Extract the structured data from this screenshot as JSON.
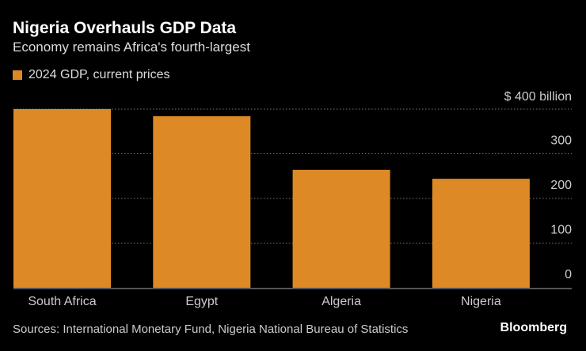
{
  "title": "Nigeria Overhauls GDP Data",
  "subtitle": "Economy remains Africa's fourth-largest",
  "source": "Sources: International Monetary Fund, Nigeria National Bureau of Statistics",
  "logo": "Bloomberg",
  "chart_data": {
    "type": "bar",
    "categories": [
      "South Africa",
      "Egypt",
      "Algeria",
      "Nigeria"
    ],
    "series": [
      {
        "name": "2024 GDP, current prices",
        "values": [
          400,
          384,
          264,
          244
        ],
        "color": "#dd8a26"
      }
    ],
    "yticks": [
      0,
      100,
      200,
      300,
      400
    ],
    "ytick_labels": [
      "0",
      "100",
      "200",
      "300",
      "$ 400 billion"
    ],
    "ylim": [
      0,
      400
    ],
    "grid": true,
    "legend": "top-left"
  }
}
